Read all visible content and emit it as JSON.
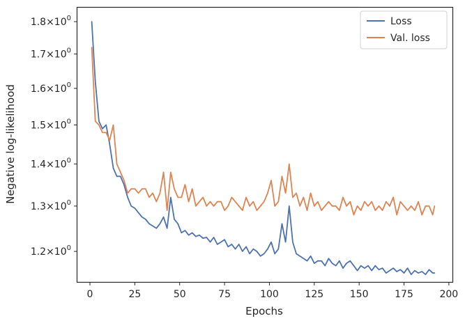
{
  "chart_data": {
    "type": "line",
    "title": "",
    "xlabel": "Epochs",
    "ylabel": "Negative log-likelihood",
    "xlim": [
      -7,
      202
    ],
    "ylim": [
      1.137,
      1.845
    ],
    "yscale": "log",
    "grid": false,
    "legend_position": "top-right",
    "x_ticks": [
      0,
      25,
      50,
      75,
      100,
      125,
      150,
      175,
      200
    ],
    "x_tick_labels": [
      "0",
      "25",
      "50",
      "75",
      "100",
      "125",
      "150",
      "175",
      "200"
    ],
    "y_ticks": [
      1.2,
      1.3,
      1.4,
      1.5,
      1.6,
      1.7,
      1.8
    ],
    "y_tick_mantissas": [
      "1.2",
      "1.3",
      "1.4",
      "1.5",
      "1.6",
      "1.7",
      "1.8"
    ],
    "y_tick_base": "10",
    "y_tick_exponent": "0",
    "y_tick_times": "×",
    "x": [
      1,
      3,
      5,
      7,
      9,
      11,
      13,
      15,
      17,
      19,
      21,
      23,
      25,
      27,
      29,
      31,
      33,
      35,
      37,
      39,
      41,
      43,
      45,
      47,
      49,
      51,
      53,
      55,
      57,
      59,
      61,
      63,
      65,
      67,
      69,
      71,
      73,
      75,
      77,
      79,
      81,
      83,
      85,
      87,
      89,
      91,
      93,
      95,
      97,
      99,
      101,
      103,
      105,
      107,
      109,
      111,
      113,
      115,
      117,
      119,
      121,
      123,
      125,
      127,
      129,
      131,
      133,
      135,
      137,
      139,
      141,
      143,
      145,
      147,
      149,
      151,
      153,
      155,
      157,
      159,
      161,
      163,
      165,
      167,
      169,
      171,
      173,
      175,
      177,
      179,
      181,
      183,
      185,
      187,
      189,
      191,
      192
    ],
    "series": [
      {
        "name": "Loss",
        "color": "#4c72b0",
        "values": [
          1.8,
          1.62,
          1.51,
          1.49,
          1.5,
          1.45,
          1.39,
          1.37,
          1.37,
          1.35,
          1.32,
          1.3,
          1.295,
          1.285,
          1.275,
          1.27,
          1.26,
          1.255,
          1.25,
          1.26,
          1.275,
          1.25,
          1.32,
          1.27,
          1.26,
          1.24,
          1.245,
          1.235,
          1.24,
          1.232,
          1.235,
          1.228,
          1.23,
          1.22,
          1.23,
          1.215,
          1.22,
          1.225,
          1.21,
          1.215,
          1.205,
          1.215,
          1.2,
          1.21,
          1.195,
          1.205,
          1.2,
          1.19,
          1.195,
          1.205,
          1.22,
          1.195,
          1.205,
          1.26,
          1.22,
          1.3,
          1.22,
          1.195,
          1.19,
          1.185,
          1.18,
          1.19,
          1.175,
          1.18,
          1.18,
          1.17,
          1.185,
          1.175,
          1.17,
          1.18,
          1.165,
          1.175,
          1.18,
          1.17,
          1.16,
          1.17,
          1.165,
          1.17,
          1.16,
          1.17,
          1.162,
          1.165,
          1.155,
          1.16,
          1.165,
          1.158,
          1.162,
          1.155,
          1.165,
          1.152,
          1.16,
          1.155,
          1.158,
          1.152,
          1.162,
          1.155,
          1.155
        ]
      },
      {
        "name": "Val. loss",
        "color": "#dd8452",
        "values": [
          1.72,
          1.51,
          1.5,
          1.48,
          1.48,
          1.46,
          1.5,
          1.4,
          1.38,
          1.36,
          1.33,
          1.34,
          1.34,
          1.33,
          1.34,
          1.34,
          1.32,
          1.33,
          1.31,
          1.33,
          1.38,
          1.29,
          1.38,
          1.34,
          1.32,
          1.32,
          1.35,
          1.31,
          1.34,
          1.3,
          1.31,
          1.32,
          1.3,
          1.31,
          1.3,
          1.31,
          1.31,
          1.29,
          1.3,
          1.32,
          1.31,
          1.3,
          1.29,
          1.32,
          1.3,
          1.31,
          1.29,
          1.3,
          1.31,
          1.33,
          1.36,
          1.3,
          1.31,
          1.37,
          1.33,
          1.4,
          1.32,
          1.33,
          1.3,
          1.32,
          1.29,
          1.33,
          1.3,
          1.31,
          1.29,
          1.3,
          1.31,
          1.3,
          1.3,
          1.29,
          1.32,
          1.3,
          1.31,
          1.28,
          1.3,
          1.29,
          1.31,
          1.3,
          1.31,
          1.29,
          1.3,
          1.29,
          1.31,
          1.3,
          1.32,
          1.28,
          1.31,
          1.3,
          1.29,
          1.3,
          1.29,
          1.31,
          1.28,
          1.3,
          1.3,
          1.28,
          1.3
        ]
      }
    ]
  }
}
